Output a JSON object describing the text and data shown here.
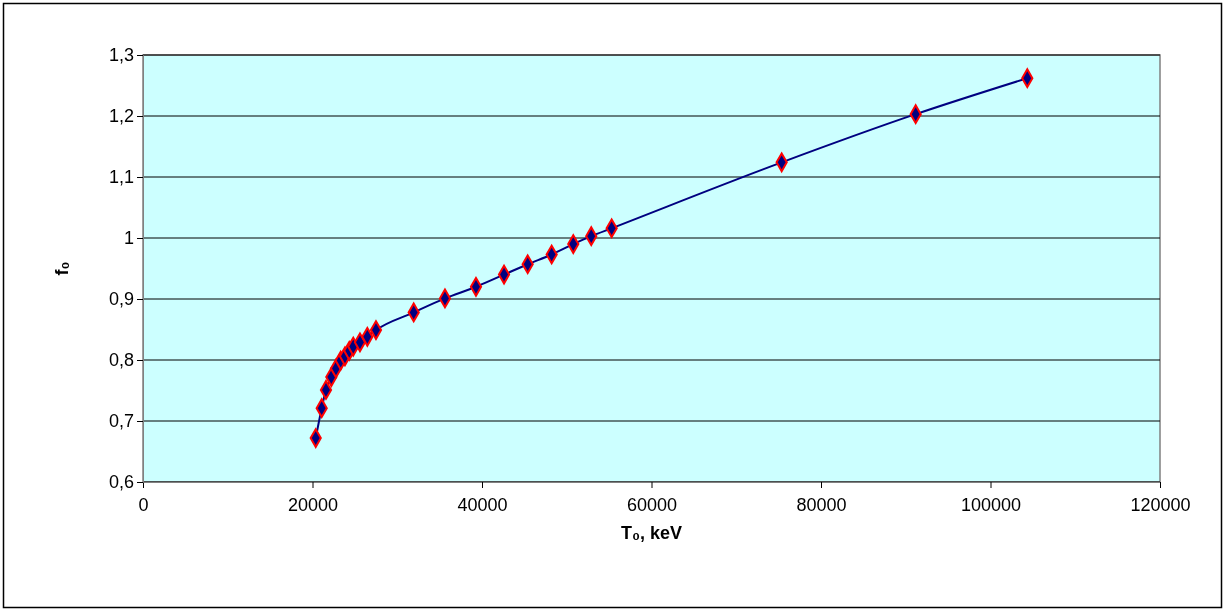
{
  "chart_data": {
    "type": "line",
    "xlabel": "T₀, keV",
    "ylabel": "f₀",
    "series": [
      {
        "color": "#000080",
        "x": [
          20380,
          21085,
          21590,
          22220,
          22770,
          23330,
          23830,
          24340,
          24810,
          25600,
          26470,
          27490,
          31940,
          35630,
          39290,
          42600,
          45390,
          48220,
          50770,
          52890,
          55300,
          75360,
          91170,
          104340
        ],
        "values": [
          0.672,
          0.721,
          0.751,
          0.772,
          0.786,
          0.799,
          0.806,
          0.815,
          0.822,
          0.829,
          0.838,
          0.849,
          0.878,
          0.901,
          0.92,
          0.94,
          0.957,
          0.973,
          0.99,
          1.003,
          1.016,
          1.124,
          1.203,
          1.262
        ]
      }
    ],
    "xlim": [
      0,
      120000
    ],
    "xticks": [
      0,
      20000,
      40000,
      60000,
      80000,
      100000,
      120000
    ],
    "ylim": [
      0.6,
      1.3
    ],
    "yticks": [
      {
        "value": 0.6,
        "label": "0,6"
      },
      {
        "value": 0.7,
        "label": "0,7"
      },
      {
        "value": 0.8,
        "label": "0,8"
      },
      {
        "value": 0.9,
        "label": "0,9"
      },
      1,
      {
        "value": 1.1,
        "label": "1,1"
      },
      {
        "value": 1.2,
        "label": "1,2"
      },
      {
        "value": 1.3,
        "label": "1,3"
      }
    ],
    "grid": "y",
    "marker": "diamond",
    "line_style": "solid"
  }
}
